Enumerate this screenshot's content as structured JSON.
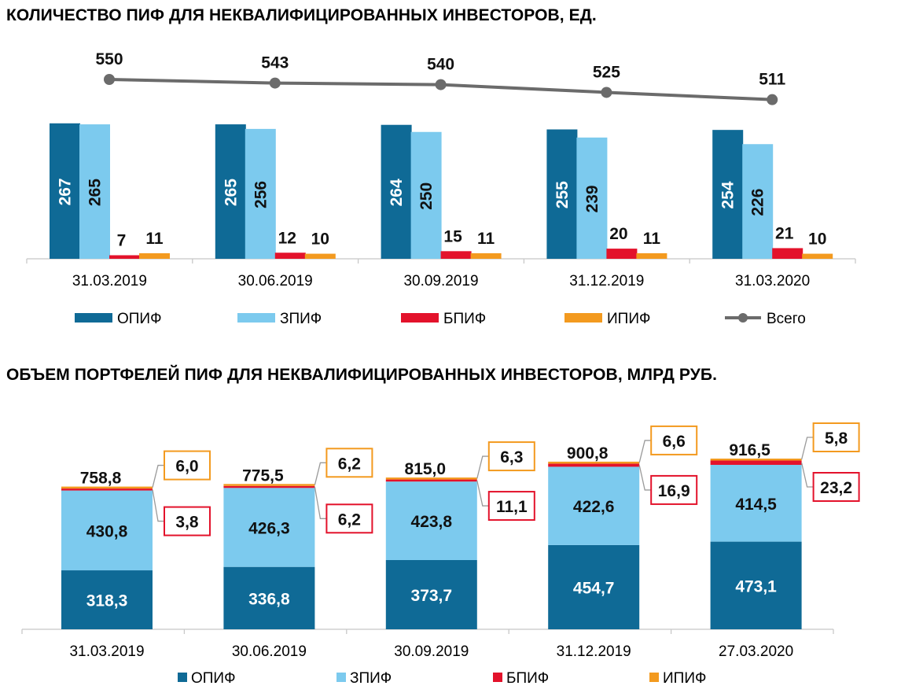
{
  "titles": {
    "count_chart": "КОЛИЧЕСТВО ПИФ ДЛЯ НЕКВАЛИФИЦИРОВАННЫХ ИНВЕСТОРОВ, ЕД.",
    "volume_chart": "ОБЪЕМ ПОРТФЕЛЕЙ ПИФ ДЛЯ НЕКВАЛИФИЦИРОВАННЫХ ИНВЕСТОРОВ, МЛРД РУБ."
  },
  "colors": {
    "opif": "#0f6a96",
    "zpif": "#7ccaee",
    "bpif": "#e3122b",
    "ipif": "#f39a1f",
    "total": "#6b6b6b"
  },
  "chart_data": [
    {
      "type": "bar",
      "title": "КОЛИЧЕСТВО ПИФ ДЛЯ НЕКВАЛИФИЦИРОВАННЫХ ИНВЕСТОРОВ, ЕД.",
      "categories": [
        "31.03.2019",
        "30.06.2019",
        "30.09.2019",
        "31.12.2019",
        "31.03.2020"
      ],
      "series": [
        {
          "name": "ОПИФ",
          "key": "opif",
          "values": [
            267,
            265,
            264,
            255,
            254
          ]
        },
        {
          "name": "ЗПИФ",
          "key": "zpif",
          "values": [
            265,
            256,
            250,
            239,
            226
          ]
        },
        {
          "name": "БПИФ",
          "key": "bpif",
          "values": [
            7,
            12,
            15,
            20,
            21
          ]
        },
        {
          "name": "ИПИФ",
          "key": "ipif",
          "values": [
            11,
            10,
            11,
            11,
            10
          ]
        }
      ],
      "line_series": {
        "name": "Всего",
        "key": "total",
        "values": [
          550,
          543,
          540,
          525,
          511
        ]
      },
      "legend": [
        "ОПИФ",
        "ЗПИФ",
        "БПИФ",
        "ИПИФ",
        "Всего"
      ],
      "legend_position": "bottom",
      "grid": false
    },
    {
      "type": "bar",
      "stacked": true,
      "title": "ОБЪЕМ ПОРТФЕЛЕЙ ПИФ ДЛЯ НЕКВАЛИФИЦИРОВАННЫХ ИНВЕСТОРОВ, МЛРД РУБ.",
      "categories": [
        "31.03.2019",
        "30.06.2019",
        "30.09.2019",
        "31.12.2019",
        "27.03.2020"
      ],
      "series": [
        {
          "name": "ОПИФ",
          "key": "opif",
          "values": [
            318.3,
            336.8,
            373.7,
            454.7,
            473.1
          ],
          "labels": [
            "318,3",
            "336,8",
            "373,7",
            "454,7",
            "473,1"
          ]
        },
        {
          "name": "ЗПИФ",
          "key": "zpif",
          "values": [
            430.8,
            426.3,
            423.8,
            422.6,
            414.5
          ],
          "labels": [
            "430,8",
            "426,3",
            "423,8",
            "422,6",
            "414,5"
          ]
        },
        {
          "name": "БПИФ",
          "key": "bpif",
          "values": [
            3.8,
            6.2,
            11.1,
            16.9,
            23.2
          ],
          "labels": [
            "3,8",
            "6,2",
            "11,1",
            "16,9",
            "23,2"
          ]
        },
        {
          "name": "ИПИФ",
          "key": "ipif",
          "values": [
            6.0,
            6.2,
            6.3,
            6.6,
            5.8
          ],
          "labels": [
            "6,0",
            "6,2",
            "6,3",
            "6,6",
            "5,8"
          ]
        }
      ],
      "totals": [
        758.8,
        775.5,
        815.0,
        900.8,
        916.5
      ],
      "total_labels": [
        "758,8",
        "775,5",
        "815,0",
        "900,8",
        "916,5"
      ],
      "legend": [
        "ОПИФ",
        "ЗПИФ",
        "БПИФ",
        "ИПИФ"
      ],
      "legend_position": "bottom",
      "grid": false
    }
  ]
}
